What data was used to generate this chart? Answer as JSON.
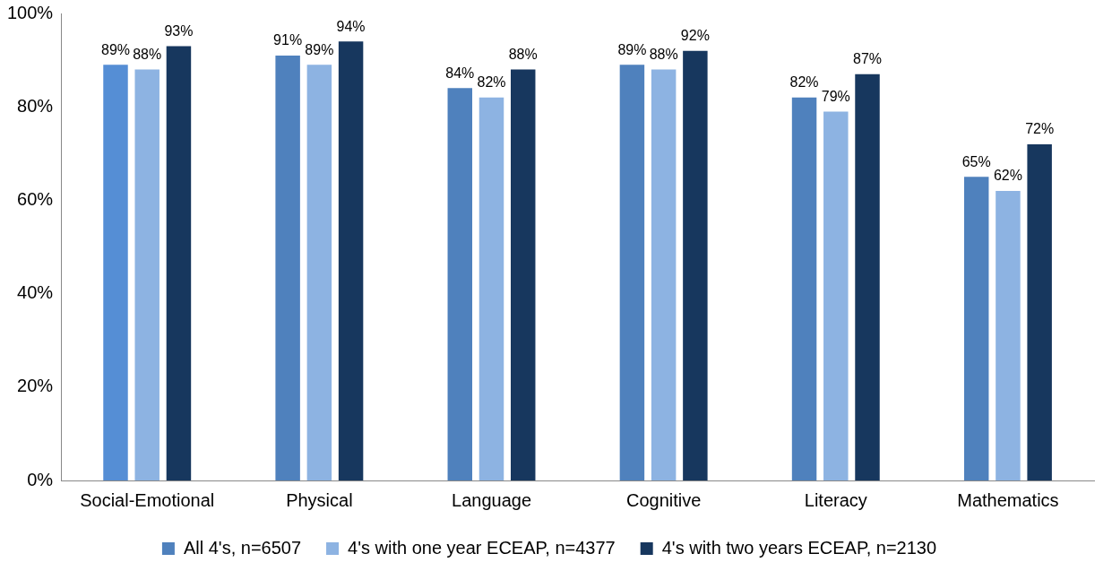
{
  "chart_data": {
    "type": "bar",
    "categories": [
      "Social-Emotional",
      "Physical",
      "Language",
      "Cognitive",
      "Literacy",
      "Mathematics"
    ],
    "series": [
      {
        "name": "All 4's, n=6507",
        "color": "#4f81bd",
        "colors": [
          "#558ed5",
          "#4f81bd",
          "#4f81bd",
          "#4f81bd",
          "#4f81bd",
          "#4f81bd"
        ],
        "values": [
          89,
          91,
          84,
          89,
          82,
          65
        ],
        "value_labels": [
          "89%",
          "91%",
          "84%",
          "89%",
          "82%",
          "65%"
        ]
      },
      {
        "name": "4's with one year ECEAP, n=4377",
        "color": "#8db3e2",
        "values": [
          88,
          89,
          82,
          88,
          79,
          62
        ],
        "value_labels": [
          "88%",
          "89%",
          "82%",
          "88%",
          "79%",
          "62%"
        ]
      },
      {
        "name": "4's with two years ECEAP, n=2130",
        "color": "#17375e",
        "values": [
          93,
          94,
          88,
          92,
          87,
          72
        ],
        "value_labels": [
          "93%",
          "94%",
          "88%",
          "92%",
          "87%",
          "72%"
        ]
      }
    ],
    "ylim": [
      0,
      100
    ],
    "yticks": [
      {
        "value": 0,
        "label": "0%"
      },
      {
        "value": 20,
        "label": "20%"
      },
      {
        "value": 40,
        "label": "40%"
      },
      {
        "value": 60,
        "label": "60%"
      },
      {
        "value": 80,
        "label": "80%"
      },
      {
        "value": 100,
        "label": "100%"
      }
    ],
    "grid": false,
    "legend": "bottom"
  }
}
